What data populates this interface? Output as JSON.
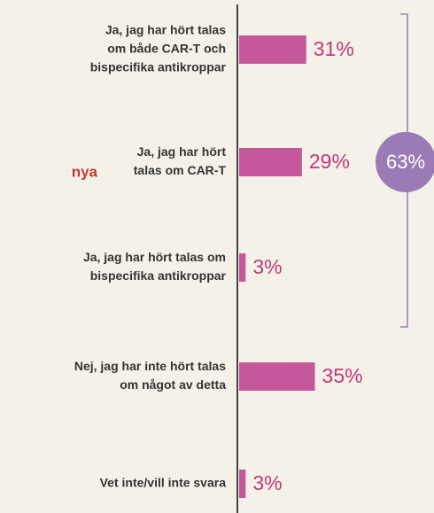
{
  "chart_data": {
    "type": "bar",
    "orientation": "horizontal",
    "categories": [
      [
        "Ja, jag har hört talas",
        "om både CAR-T och",
        "bispecifika antikroppar"
      ],
      [
        "Ja, jag har hört",
        "talas om CAR-T"
      ],
      [
        "Ja, jag har hört talas om",
        "bispecifika antikroppar"
      ],
      [
        "Nej, jag har inte hört talas",
        "om något av detta"
      ],
      [
        "Vet inte/vill inte svara"
      ]
    ],
    "values": [
      31,
      29,
      3,
      35,
      3
    ],
    "value_labels": [
      "31%",
      "29%",
      "3%",
      "35%",
      "3%"
    ],
    "color": "#c4589a",
    "xlim": [
      0,
      90
    ],
    "annotations": [
      "63%",
      "nya"
    ]
  }
}
